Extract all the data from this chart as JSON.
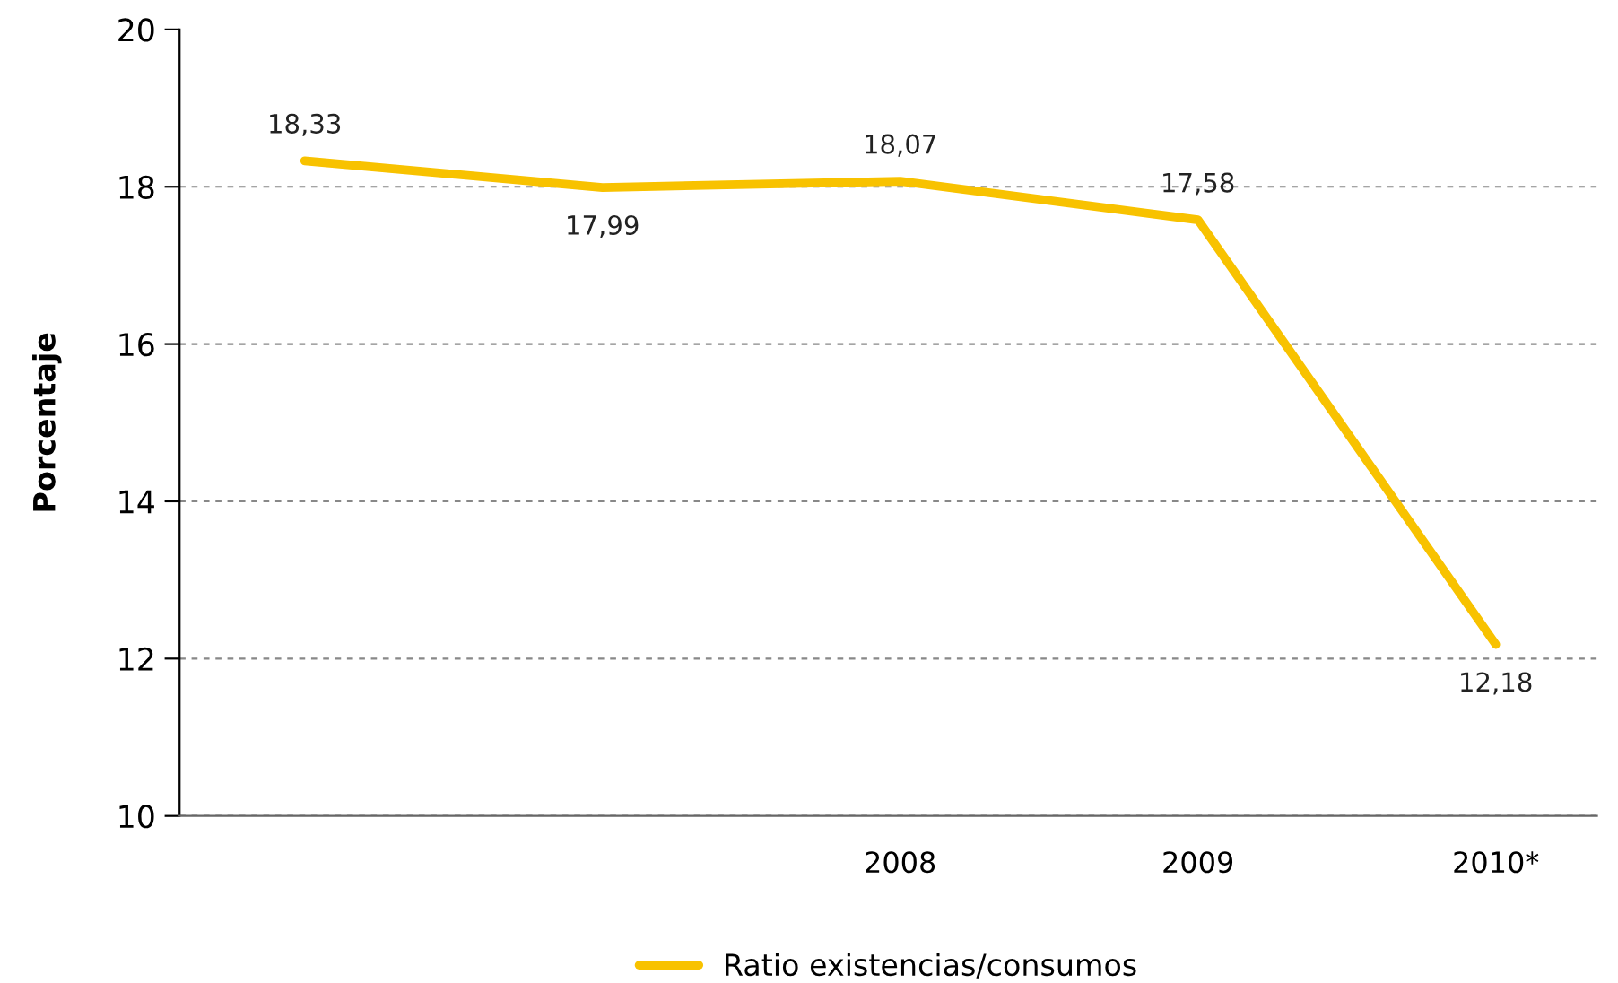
{
  "chart_data": {
    "type": "line",
    "ylabel": "Porcentaje",
    "categories": [
      null,
      null,
      "2008",
      "2009",
      "2010*"
    ],
    "series": [
      {
        "name": "Ratio existencias/consumos",
        "color": "#f8c200",
        "values": [
          18.33,
          17.99,
          18.07,
          17.58,
          12.18
        ],
        "value_labels": [
          "18,33",
          "17,99",
          "18,07",
          "17,58",
          "12,18"
        ]
      }
    ],
    "ylim": [
      10,
      20
    ],
    "yticks": [
      10,
      12,
      14,
      16,
      18,
      20
    ],
    "grid": "y",
    "legend": "bottom",
    "marker": "none",
    "line_style": "solid"
  }
}
